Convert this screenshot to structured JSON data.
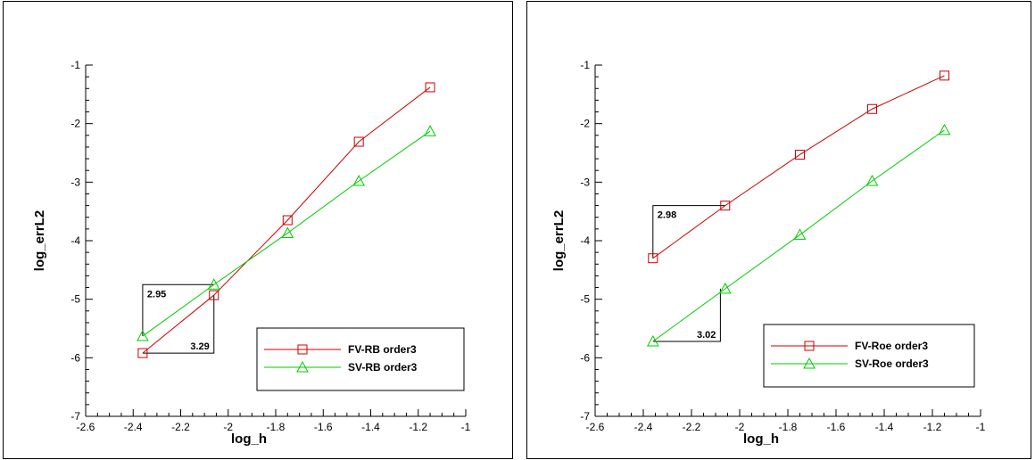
{
  "chart_data": [
    {
      "type": "line",
      "xlabel": "log_h",
      "ylabel": "log_errL2",
      "xlim": [
        -2.6,
        -1
      ],
      "ylim": [
        -7,
        -1
      ],
      "xticks": [
        -2.6,
        -2.4,
        -2.2,
        -2,
        -1.8,
        -1.6,
        -1.4,
        -1.2,
        -1
      ],
      "xtick_labels": [
        "-2.6",
        "-2.4",
        "-2.2",
        "-2",
        "-1.8",
        "-1.6",
        "-1.4",
        "-1.2",
        "-1"
      ],
      "yticks": [
        -7,
        -6,
        -5,
        -4,
        -3,
        -2,
        -1
      ],
      "ytick_labels": [
        "-7",
        "-6",
        "-5",
        "-4",
        "-3",
        "-2",
        "-1"
      ],
      "legend_position": "bottom-right",
      "series": [
        {
          "name": "FV-RB order3",
          "color": "#cc0000",
          "marker": "square",
          "x": [
            -2.36,
            -2.06,
            -1.75,
            -1.45,
            -1.15
          ],
          "y": [
            -5.92,
            -4.93,
            -3.65,
            -2.31,
            -1.38
          ]
        },
        {
          "name": "SV-RB order3",
          "color": "#00cc00",
          "marker": "triangle",
          "x": [
            -2.36,
            -2.06,
            -1.75,
            -1.45,
            -1.15
          ],
          "y": [
            -5.63,
            -4.75,
            -3.87,
            -2.98,
            -2.13
          ]
        }
      ],
      "annotations": [
        {
          "text": "2.95",
          "type": "slope-triangle-upper",
          "x": [
            -2.36,
            -2.06
          ],
          "y": [
            -5.63,
            -4.75
          ]
        },
        {
          "text": "3.29",
          "type": "slope-triangle-lower",
          "x": [
            -2.36,
            -2.06
          ],
          "y": [
            -5.92,
            -4.93
          ]
        }
      ]
    },
    {
      "type": "line",
      "xlabel": "log_h",
      "ylabel": "log_errL2",
      "xlim": [
        -2.6,
        -1
      ],
      "ylim": [
        -7,
        -1
      ],
      "xticks": [
        -2.6,
        -2.4,
        -2.2,
        -2,
        -1.8,
        -1.6,
        -1.4,
        -1.2,
        -1
      ],
      "xtick_labels": [
        "-2.6",
        "-2.4",
        "-2.2",
        "-2",
        "-1.8",
        "-1.6",
        "-1.4",
        "-1.2",
        "-1"
      ],
      "yticks": [
        -7,
        -6,
        -5,
        -4,
        -3,
        -2,
        -1
      ],
      "ytick_labels": [
        "-7",
        "-6",
        "-5",
        "-4",
        "-3",
        "-2",
        "-1"
      ],
      "legend_position": "bottom-right",
      "series": [
        {
          "name": "FV-Roe order3",
          "color": "#cc0000",
          "marker": "square",
          "x": [
            -2.36,
            -2.06,
            -1.75,
            -1.45,
            -1.15
          ],
          "y": [
            -4.3,
            -3.4,
            -2.53,
            -1.75,
            -1.18
          ]
        },
        {
          "name": "SV-Roe order3",
          "color": "#00cc00",
          "marker": "triangle",
          "x": [
            -2.36,
            -2.06,
            -1.75,
            -1.45,
            -1.15
          ],
          "y": [
            -5.72,
            -4.82,
            -3.9,
            -2.98,
            -2.11
          ]
        }
      ],
      "annotations": [
        {
          "text": "2.98",
          "type": "slope-triangle-upper",
          "x": [
            -2.36,
            -2.06
          ],
          "y": [
            -4.3,
            -3.4
          ]
        },
        {
          "text": "3.02",
          "type": "slope-triangle-lower",
          "x": [
            -2.36,
            -2.08
          ],
          "y": [
            -5.72,
            -4.82
          ]
        }
      ]
    }
  ]
}
